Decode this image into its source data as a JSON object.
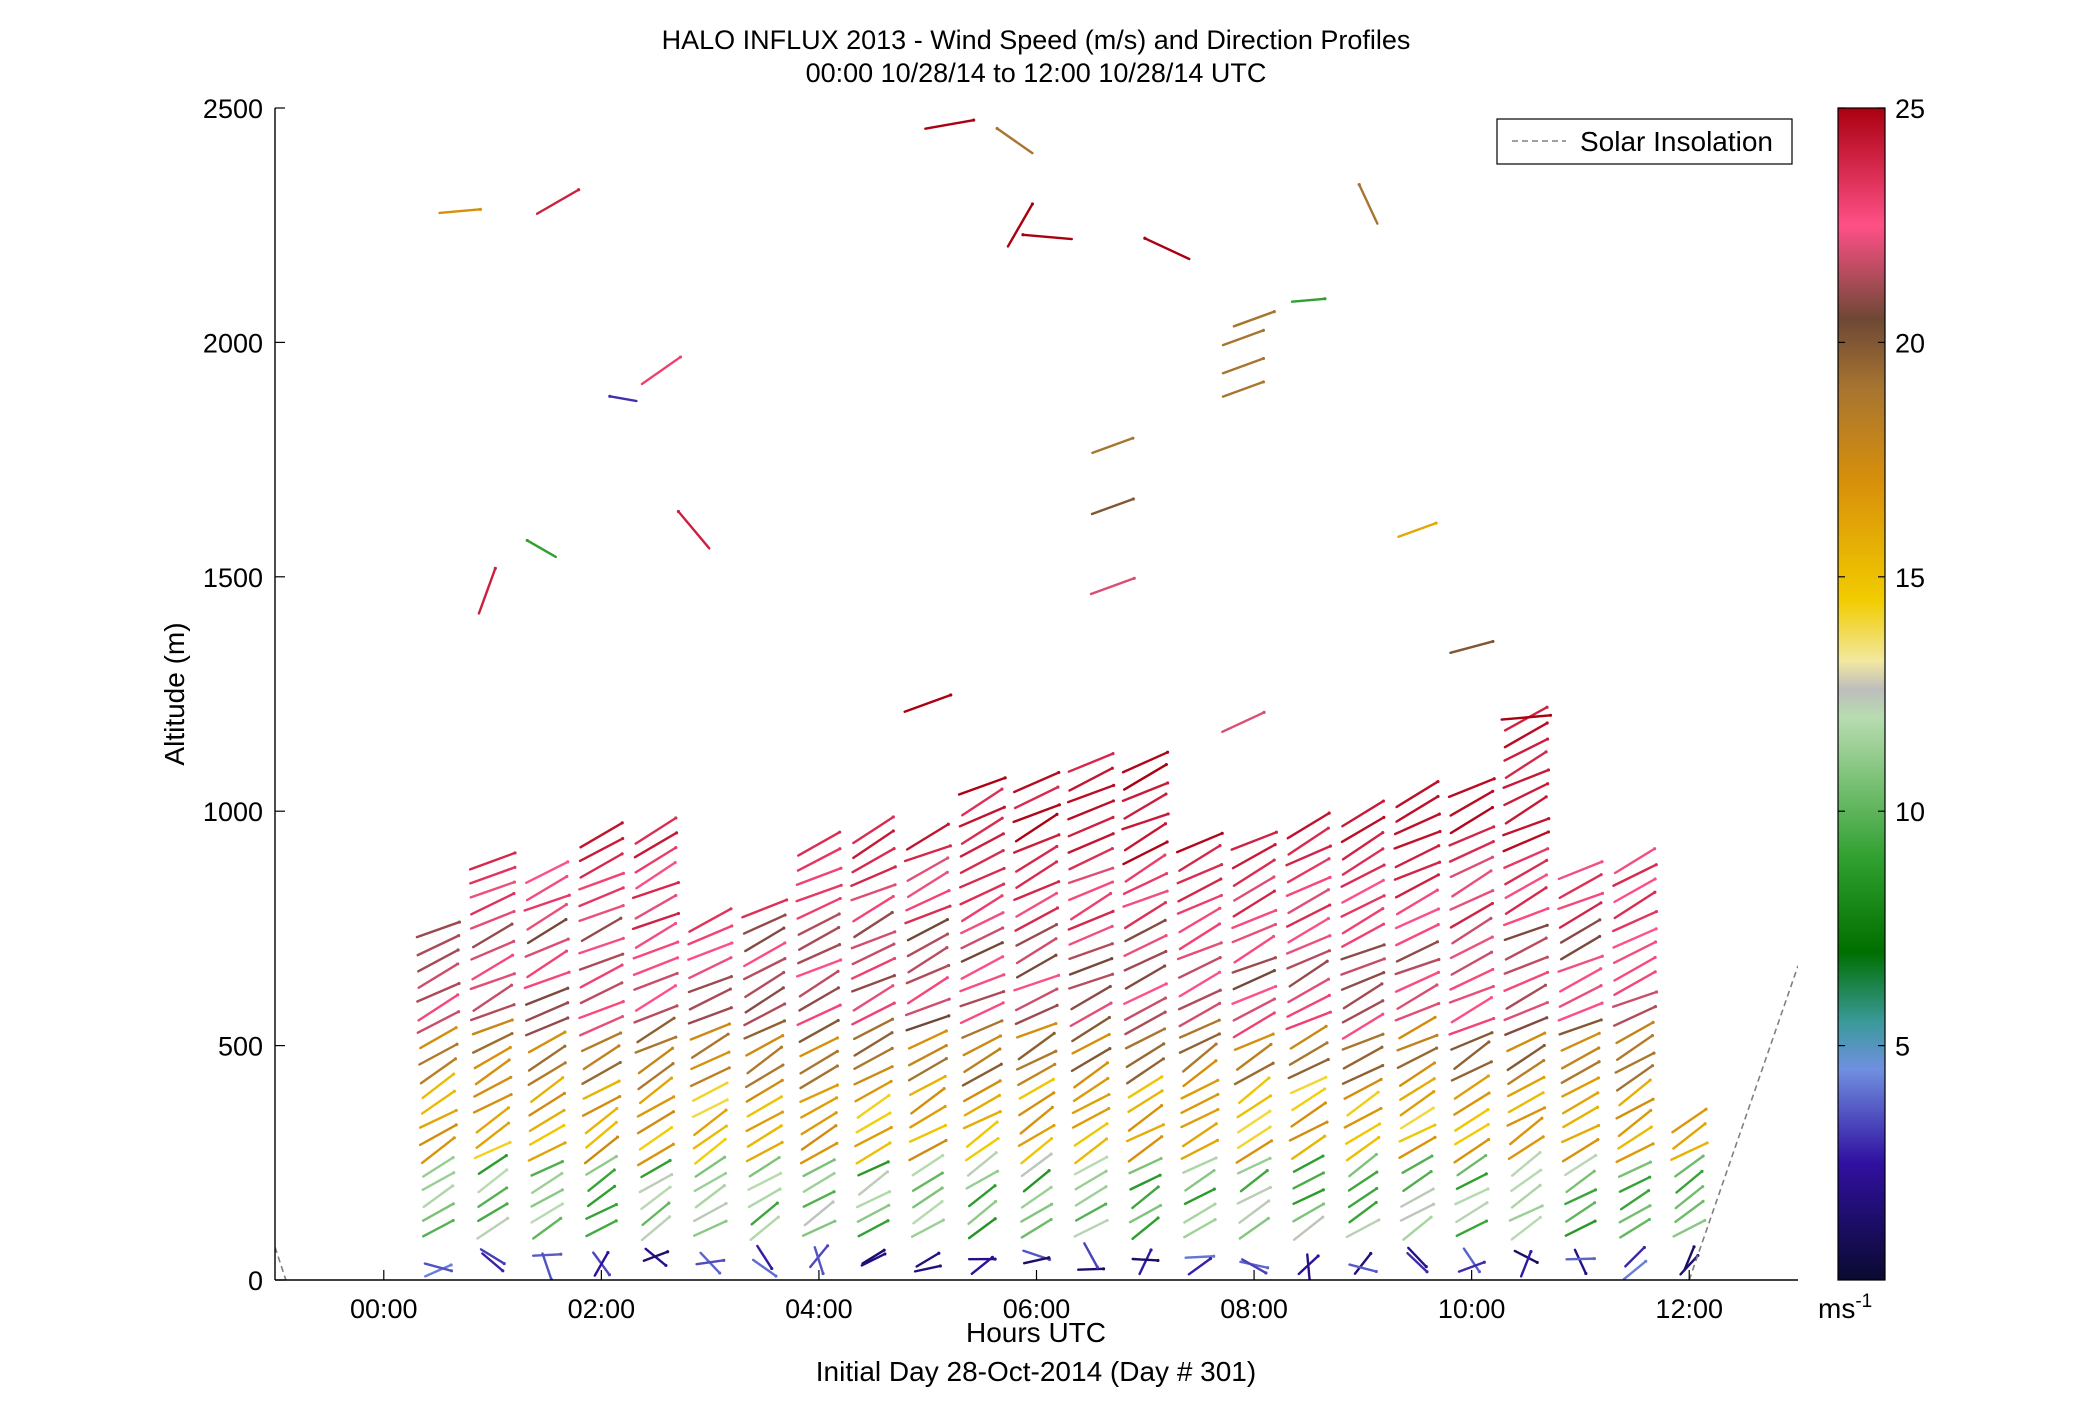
{
  "chart_data": {
    "type": "scatter",
    "title": "HALO INFLUX 2013 - Wind Speed (m/s) and Direction Profiles",
    "subtitle": "00:00 10/28/14 to 12:00 10/28/14  UTC",
    "xlabel": "Hours UTC",
    "xlabel2": "Initial Day 28-Oct-2014 (Day # 301)",
    "ylabel": "Altitude (m)",
    "xlim": [
      -1,
      13
    ],
    "ylim": [
      0,
      2500
    ],
    "x_ticks": [
      {
        "value": 0,
        "label": "00:00"
      },
      {
        "value": 2,
        "label": "02:00"
      },
      {
        "value": 4,
        "label": "04:00"
      },
      {
        "value": 6,
        "label": "06:00"
      },
      {
        "value": 8,
        "label": "08:00"
      },
      {
        "value": 10,
        "label": "10:00"
      },
      {
        "value": 12,
        "label": "12:00"
      }
    ],
    "y_ticks": [
      {
        "value": 0,
        "label": "0"
      },
      {
        "value": 500,
        "label": "500"
      },
      {
        "value": 1000,
        "label": "1000"
      },
      {
        "value": 1500,
        "label": "1500"
      },
      {
        "value": 2000,
        "label": "2000"
      },
      {
        "value": 2500,
        "label": "2500"
      }
    ],
    "legend": {
      "entry": "Solar Insolation",
      "position": "top-right",
      "style": "dashed",
      "color": "#808080"
    },
    "colorbar": {
      "range": [
        0,
        25
      ],
      "ticks": [
        {
          "value": 5,
          "label": "5"
        },
        {
          "value": 10,
          "label": "10"
        },
        {
          "value": 15,
          "label": "15"
        },
        {
          "value": 20,
          "label": "20"
        },
        {
          "value": 25,
          "label": "25"
        }
      ],
      "unit_label": "ms",
      "unit_exponent": "-1",
      "stops": [
        {
          "v": 0,
          "c": "#0a0a30"
        },
        {
          "v": 2.5,
          "c": "#3010a0"
        },
        {
          "v": 4.5,
          "c": "#7090e0"
        },
        {
          "v": 5.5,
          "c": "#3a9a9a"
        },
        {
          "v": 7,
          "c": "#006f00"
        },
        {
          "v": 9,
          "c": "#30a030"
        },
        {
          "v": 12,
          "c": "#b8dcb0"
        },
        {
          "v": 12.6,
          "c": "#bdbdbd"
        },
        {
          "v": 13.2,
          "c": "#f2e8a0"
        },
        {
          "v": 14.5,
          "c": "#f2cc00"
        },
        {
          "v": 17,
          "c": "#d8900a"
        },
        {
          "v": 19,
          "c": "#a87530"
        },
        {
          "v": 20.5,
          "c": "#6e4835"
        },
        {
          "v": 22.5,
          "c": "#ff5087"
        },
        {
          "v": 25,
          "c": "#aa0010"
        }
      ]
    },
    "profile_times": [
      0.5,
      1,
      1.5,
      2,
      2.5,
      3,
      3.5,
      4,
      4.5,
      5,
      5.5,
      6,
      6.5,
      7,
      7.5,
      8,
      8.5,
      9,
      9.5,
      10,
      10.5,
      11,
      11.5,
      12
    ],
    "wind_barbs_sampled": [
      {
        "t": 0.5,
        "alt": 700,
        "speed": 22,
        "dir": 245
      },
      {
        "t": 1.0,
        "alt": 800,
        "speed": 23,
        "dir": 245
      },
      {
        "t": 2.5,
        "alt": 920,
        "speed": 24,
        "dir": 240
      },
      {
        "t": 5.0,
        "alt": 1230,
        "speed": 25,
        "dir": 250
      },
      {
        "t": 6.5,
        "alt": 1100,
        "speed": 25,
        "dir": 250
      },
      {
        "t": 8.0,
        "alt": 2050,
        "speed": 19,
        "dir": 250
      },
      {
        "t": 8.5,
        "alt": 2090,
        "speed": 9,
        "dir": 265
      },
      {
        "t": 9.5,
        "alt": 1600,
        "speed": 16,
        "dir": 250
      },
      {
        "t": 10.0,
        "alt": 1350,
        "speed": 20,
        "dir": 255
      },
      {
        "t": 10.5,
        "alt": 1200,
        "speed": 25,
        "dir": 265
      },
      {
        "t": 11.5,
        "alt": 900,
        "speed": 16,
        "dir": 265
      },
      {
        "t": 4.0,
        "alt": 300,
        "speed": 16,
        "dir": 240
      },
      {
        "t": 6.0,
        "alt": 150,
        "speed": 11,
        "dir": 240
      },
      {
        "t": 12.0,
        "alt": 300,
        "speed": 15,
        "dir": 250
      },
      {
        "t": 3.0,
        "alt": 40,
        "speed": 2,
        "dir": 300
      },
      {
        "t": 11.0,
        "alt": 25,
        "speed": 1,
        "dir": 280
      }
    ]
  }
}
